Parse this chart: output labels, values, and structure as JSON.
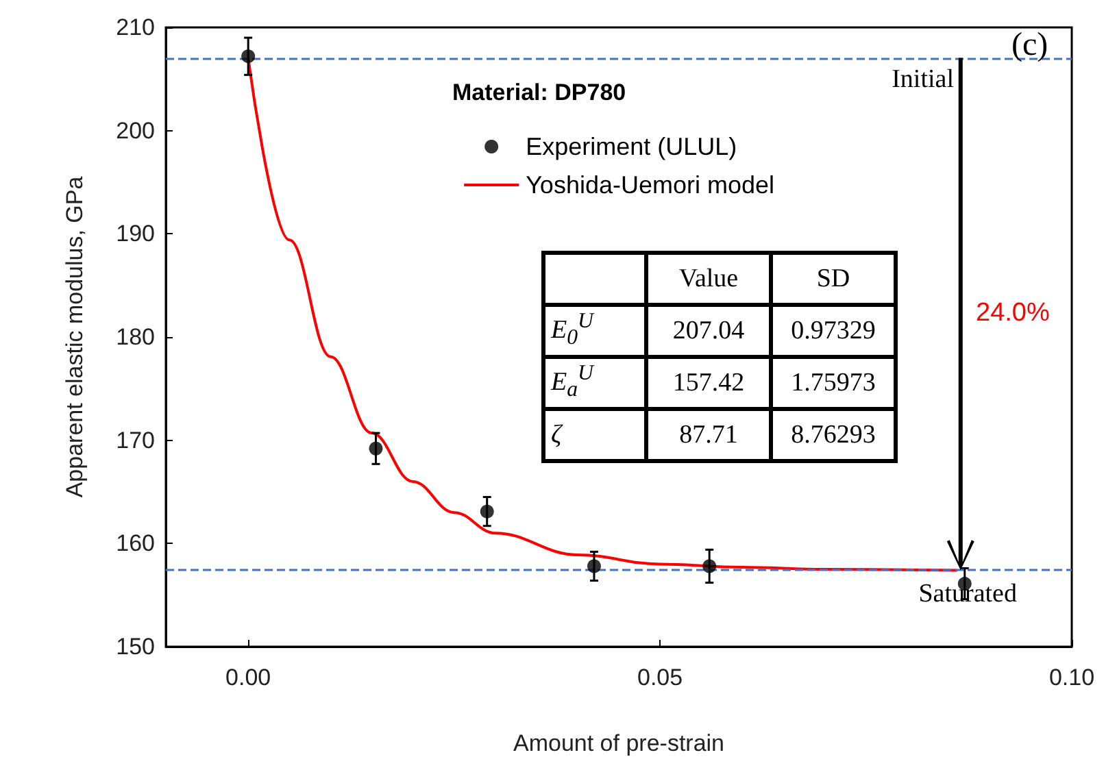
{
  "chart_data": {
    "type": "scatter",
    "xlabel": "Amount of pre-strain",
    "ylabel": "Apparent elastic modulus, GPa",
    "xlim": [
      -0.01,
      0.1
    ],
    "xticks": [
      {
        "value": 0,
        "label": "0.00"
      },
      {
        "value": 0.05,
        "label": "0.05"
      },
      {
        "value": 0.1,
        "label": "0.10"
      }
    ],
    "ylim": [
      150,
      210
    ],
    "yticks": [
      150,
      160,
      170,
      180,
      190,
      200,
      210
    ],
    "grid": false,
    "legend": "top right",
    "marker": "circle",
    "series": [
      {
        "name": "Experiment (ULUL)",
        "type": "scatter",
        "color": "#000000",
        "x": [
          0,
          0.0155,
          0.029,
          0.042,
          0.056,
          0.087
        ],
        "values": [
          207.2,
          169.2,
          163.1,
          157.8,
          157.8,
          156.1
        ],
        "errors": [
          1.8,
          1.5,
          1.4,
          1.4,
          1.6,
          1.5
        ]
      },
      {
        "name": "Yoshida-Uemori model",
        "type": "line",
        "color": "#ff0000",
        "marker": "none",
        "line_style": "solid",
        "x": [
          0,
          0.005,
          0.01,
          0.015,
          0.02,
          0.025,
          0.03,
          0.04,
          0.05,
          0.06,
          0.07,
          0.086
        ],
        "values": [
          207.0,
          189.4,
          178.1,
          170.7,
          166.0,
          163.0,
          161.0,
          158.9,
          158.0,
          157.7,
          157.5,
          157.4
        ]
      }
    ],
    "ref_lines": [
      {
        "axis": "y",
        "value": 207.04,
        "label": "Initial",
        "color": "#4472c4",
        "line_style": "dashed"
      },
      {
        "axis": "y",
        "value": 157.42,
        "label": "Saturated",
        "color": "#4472c4",
        "line_style": "dashed"
      }
    ],
    "annotations": [
      "Material: DP780",
      "(c)",
      "24.0%",
      "Value",
      "SD",
      "E$_{0}$$^{U}$",
      "207.04",
      "0.97329",
      "E$_{a}$$^{U}$",
      "157.42",
      "1.75973",
      "ζ",
      "87.71",
      "8.76293"
    ]
  }
}
